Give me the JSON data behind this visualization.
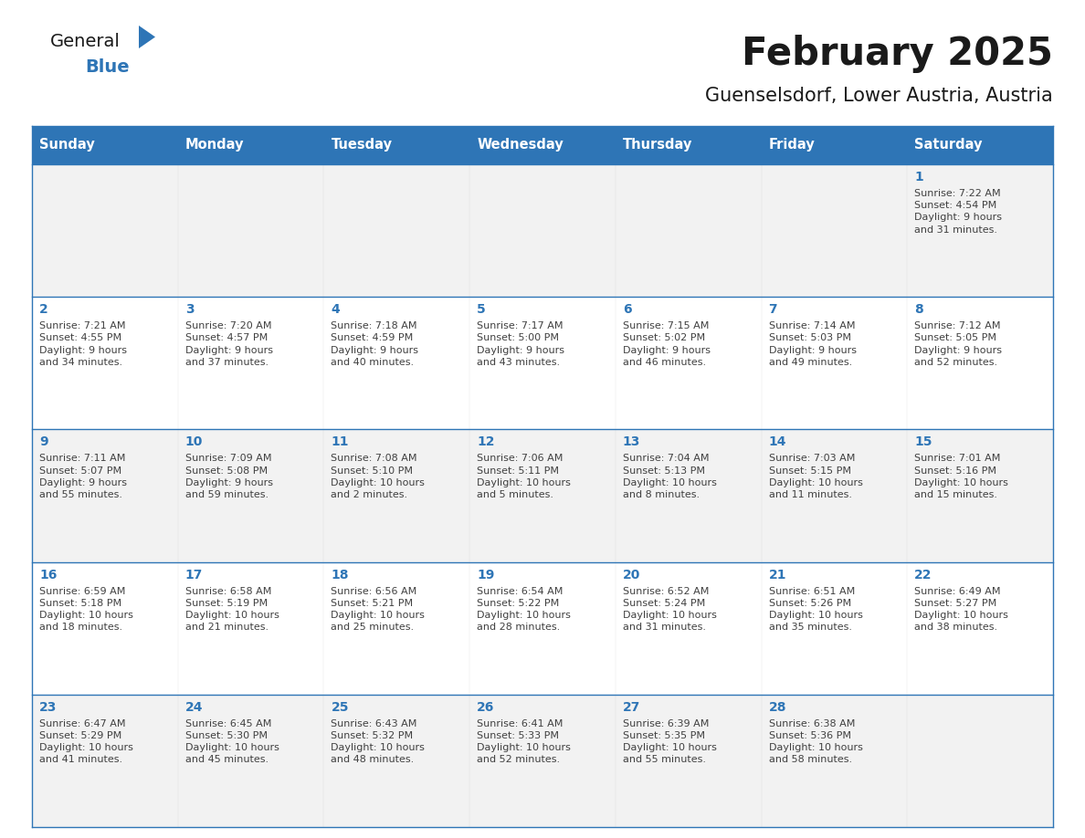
{
  "title": "February 2025",
  "subtitle": "Guenselsdorf, Lower Austria, Austria",
  "days_of_week": [
    "Sunday",
    "Monday",
    "Tuesday",
    "Wednesday",
    "Thursday",
    "Friday",
    "Saturday"
  ],
  "header_bg": "#2E75B6",
  "header_text": "#FFFFFF",
  "cell_bg_odd": "#F2F2F2",
  "cell_bg_even": "#FFFFFF",
  "day_number_color": "#2E75B6",
  "info_text_color": "#404040",
  "border_color": "#2E75B6",
  "logo_general_color": "#1a1a1a",
  "logo_blue_color": "#2E75B6",
  "calendar_data": [
    [
      {
        "day": null,
        "sunrise": null,
        "sunset": null,
        "daylight": null
      },
      {
        "day": null,
        "sunrise": null,
        "sunset": null,
        "daylight": null
      },
      {
        "day": null,
        "sunrise": null,
        "sunset": null,
        "daylight": null
      },
      {
        "day": null,
        "sunrise": null,
        "sunset": null,
        "daylight": null
      },
      {
        "day": null,
        "sunrise": null,
        "sunset": null,
        "daylight": null
      },
      {
        "day": null,
        "sunrise": null,
        "sunset": null,
        "daylight": null
      },
      {
        "day": 1,
        "sunrise": "7:22 AM",
        "sunset": "4:54 PM",
        "daylight": "9 hours\nand 31 minutes."
      }
    ],
    [
      {
        "day": 2,
        "sunrise": "7:21 AM",
        "sunset": "4:55 PM",
        "daylight": "9 hours\nand 34 minutes."
      },
      {
        "day": 3,
        "sunrise": "7:20 AM",
        "sunset": "4:57 PM",
        "daylight": "9 hours\nand 37 minutes."
      },
      {
        "day": 4,
        "sunrise": "7:18 AM",
        "sunset": "4:59 PM",
        "daylight": "9 hours\nand 40 minutes."
      },
      {
        "day": 5,
        "sunrise": "7:17 AM",
        "sunset": "5:00 PM",
        "daylight": "9 hours\nand 43 minutes."
      },
      {
        "day": 6,
        "sunrise": "7:15 AM",
        "sunset": "5:02 PM",
        "daylight": "9 hours\nand 46 minutes."
      },
      {
        "day": 7,
        "sunrise": "7:14 AM",
        "sunset": "5:03 PM",
        "daylight": "9 hours\nand 49 minutes."
      },
      {
        "day": 8,
        "sunrise": "7:12 AM",
        "sunset": "5:05 PM",
        "daylight": "9 hours\nand 52 minutes."
      }
    ],
    [
      {
        "day": 9,
        "sunrise": "7:11 AM",
        "sunset": "5:07 PM",
        "daylight": "9 hours\nand 55 minutes."
      },
      {
        "day": 10,
        "sunrise": "7:09 AM",
        "sunset": "5:08 PM",
        "daylight": "9 hours\nand 59 minutes."
      },
      {
        "day": 11,
        "sunrise": "7:08 AM",
        "sunset": "5:10 PM",
        "daylight": "10 hours\nand 2 minutes."
      },
      {
        "day": 12,
        "sunrise": "7:06 AM",
        "sunset": "5:11 PM",
        "daylight": "10 hours\nand 5 minutes."
      },
      {
        "day": 13,
        "sunrise": "7:04 AM",
        "sunset": "5:13 PM",
        "daylight": "10 hours\nand 8 minutes."
      },
      {
        "day": 14,
        "sunrise": "7:03 AM",
        "sunset": "5:15 PM",
        "daylight": "10 hours\nand 11 minutes."
      },
      {
        "day": 15,
        "sunrise": "7:01 AM",
        "sunset": "5:16 PM",
        "daylight": "10 hours\nand 15 minutes."
      }
    ],
    [
      {
        "day": 16,
        "sunrise": "6:59 AM",
        "sunset": "5:18 PM",
        "daylight": "10 hours\nand 18 minutes."
      },
      {
        "day": 17,
        "sunrise": "6:58 AM",
        "sunset": "5:19 PM",
        "daylight": "10 hours\nand 21 minutes."
      },
      {
        "day": 18,
        "sunrise": "6:56 AM",
        "sunset": "5:21 PM",
        "daylight": "10 hours\nand 25 minutes."
      },
      {
        "day": 19,
        "sunrise": "6:54 AM",
        "sunset": "5:22 PM",
        "daylight": "10 hours\nand 28 minutes."
      },
      {
        "day": 20,
        "sunrise": "6:52 AM",
        "sunset": "5:24 PM",
        "daylight": "10 hours\nand 31 minutes."
      },
      {
        "day": 21,
        "sunrise": "6:51 AM",
        "sunset": "5:26 PM",
        "daylight": "10 hours\nand 35 minutes."
      },
      {
        "day": 22,
        "sunrise": "6:49 AM",
        "sunset": "5:27 PM",
        "daylight": "10 hours\nand 38 minutes."
      }
    ],
    [
      {
        "day": 23,
        "sunrise": "6:47 AM",
        "sunset": "5:29 PM",
        "daylight": "10 hours\nand 41 minutes."
      },
      {
        "day": 24,
        "sunrise": "6:45 AM",
        "sunset": "5:30 PM",
        "daylight": "10 hours\nand 45 minutes."
      },
      {
        "day": 25,
        "sunrise": "6:43 AM",
        "sunset": "5:32 PM",
        "daylight": "10 hours\nand 48 minutes."
      },
      {
        "day": 26,
        "sunrise": "6:41 AM",
        "sunset": "5:33 PM",
        "daylight": "10 hours\nand 52 minutes."
      },
      {
        "day": 27,
        "sunrise": "6:39 AM",
        "sunset": "5:35 PM",
        "daylight": "10 hours\nand 55 minutes."
      },
      {
        "day": 28,
        "sunrise": "6:38 AM",
        "sunset": "5:36 PM",
        "daylight": "10 hours\nand 58 minutes."
      },
      {
        "day": null,
        "sunrise": null,
        "sunset": null,
        "daylight": null
      }
    ]
  ]
}
